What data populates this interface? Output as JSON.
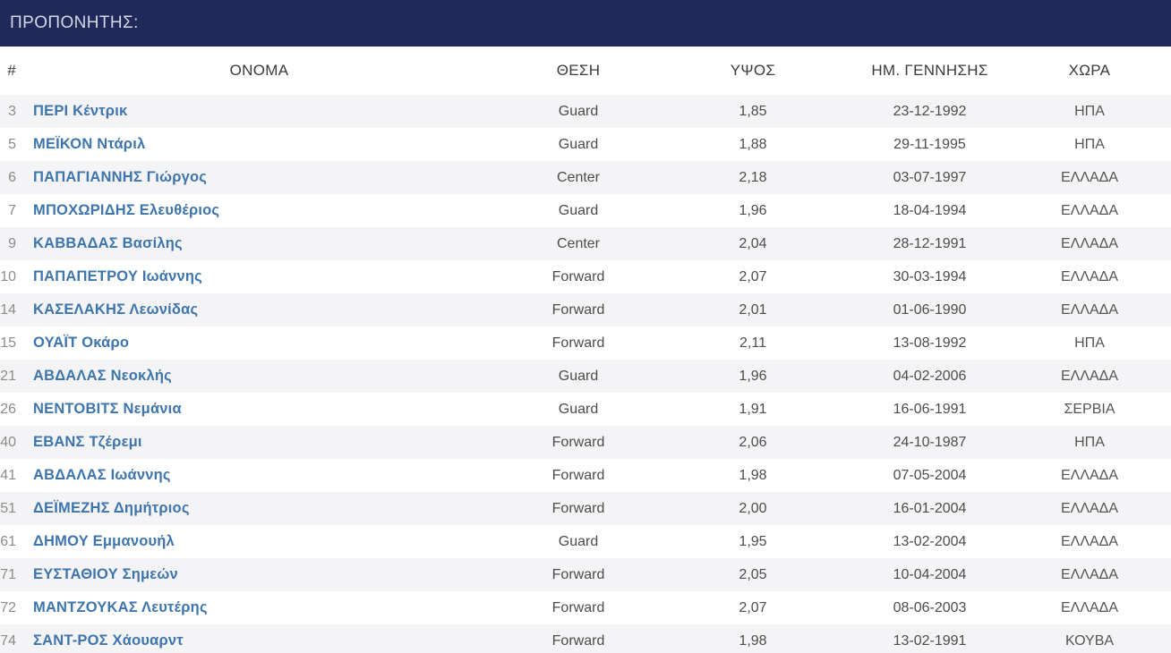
{
  "coach_bar": {
    "label": "ΠΡΟΠΟΝΗΤΗΣ:"
  },
  "table": {
    "columns": [
      "#",
      "ΟΝΟΜΑ",
      "ΘΕΣΗ",
      "ΥΨΟΣ",
      "ΗΜ. ΓΕΝΝΗΣΗΣ",
      "ΧΩΡΑ"
    ],
    "rows": [
      {
        "number": "3",
        "name": "ΠΕΡΙ Κέντρικ",
        "position": "Guard",
        "height": "1,85",
        "birthdate": "23-12-1992",
        "country": "ΗΠΑ"
      },
      {
        "number": "5",
        "name": "ΜΕΪΚΟΝ Ντάριλ",
        "position": "Guard",
        "height": "1,88",
        "birthdate": "29-11-1995",
        "country": "ΗΠΑ"
      },
      {
        "number": "6",
        "name": "ΠΑΠΑΓΙΑΝΝΗΣ Γιώργος",
        "position": "Center",
        "height": "2,18",
        "birthdate": "03-07-1997",
        "country": "ΕΛΛΑΔΑ"
      },
      {
        "number": "7",
        "name": "ΜΠΟΧΩΡΙΔΗΣ Ελευθέριος",
        "position": "Guard",
        "height": "1,96",
        "birthdate": "18-04-1994",
        "country": "ΕΛΛΑΔΑ"
      },
      {
        "number": "9",
        "name": "ΚΑΒΒΑΔΑΣ Βασίλης",
        "position": "Center",
        "height": "2,04",
        "birthdate": "28-12-1991",
        "country": "ΕΛΛΑΔΑ"
      },
      {
        "number": "10",
        "name": "ΠΑΠΑΠΕΤΡΟΥ Ιωάννης",
        "position": "Forward",
        "height": "2,07",
        "birthdate": "30-03-1994",
        "country": "ΕΛΛΑΔΑ"
      },
      {
        "number": "14",
        "name": "ΚΑΣΕΛΑΚΗΣ Λεωνίδας",
        "position": "Forward",
        "height": "2,01",
        "birthdate": "01-06-1990",
        "country": "ΕΛΛΑΔΑ"
      },
      {
        "number": "15",
        "name": "ΟΥΑΪΤ Οκάρο",
        "position": "Forward",
        "height": "2,11",
        "birthdate": "13-08-1992",
        "country": "ΗΠΑ"
      },
      {
        "number": "21",
        "name": "ΑΒΔΑΛΑΣ Νεοκλής",
        "position": "Guard",
        "height": "1,96",
        "birthdate": "04-02-2006",
        "country": "ΕΛΛΑΔΑ"
      },
      {
        "number": "26",
        "name": "ΝΕΝΤΟΒΙΤΣ Νεμάνια",
        "position": "Guard",
        "height": "1,91",
        "birthdate": "16-06-1991",
        "country": "ΣΕΡΒΙΑ"
      },
      {
        "number": "40",
        "name": "ΕΒΑΝΣ Τζέρεμι",
        "position": "Forward",
        "height": "2,06",
        "birthdate": "24-10-1987",
        "country": "ΗΠΑ"
      },
      {
        "number": "41",
        "name": "ΑΒΔΑΛΑΣ Ιωάννης",
        "position": "Forward",
        "height": "1,98",
        "birthdate": "07-05-2004",
        "country": "ΕΛΛΑΔΑ"
      },
      {
        "number": "51",
        "name": "ΔΕΪΜΕΖΗΣ Δημήτριος",
        "position": "Forward",
        "height": "2,00",
        "birthdate": "16-01-2004",
        "country": "ΕΛΛΑΔΑ"
      },
      {
        "number": "61",
        "name": "ΔΗΜΟΥ Εμμανουήλ",
        "position": "Guard",
        "height": "1,95",
        "birthdate": "13-02-2004",
        "country": "ΕΛΛΑΔΑ"
      },
      {
        "number": "71",
        "name": "ΕΥΣΤΑΘΙΟΥ Σημεών",
        "position": "Forward",
        "height": "2,05",
        "birthdate": "10-04-2004",
        "country": "ΕΛΛΑΔΑ"
      },
      {
        "number": "72",
        "name": "ΜΑΝΤΖΟΥΚΑΣ Λευτέρης",
        "position": "Forward",
        "height": "2,07",
        "birthdate": "08-06-2003",
        "country": "ΕΛΛΑΔΑ"
      },
      {
        "number": "74",
        "name": "ΣΑΝΤ-ΡΟΣ Χάουαρντ",
        "position": "Forward",
        "height": "1,98",
        "birthdate": "13-02-1991",
        "country": "ΚΟΥΒΑ"
      }
    ]
  },
  "colors": {
    "topbar_background": "#1f2a5a",
    "topbar_text": "#d4d8e4",
    "row_stripe": "#f4f4f6",
    "player_link": "#3e75ac",
    "cell_text": "#4c4c4c",
    "row_number": "#8c8c8c"
  }
}
